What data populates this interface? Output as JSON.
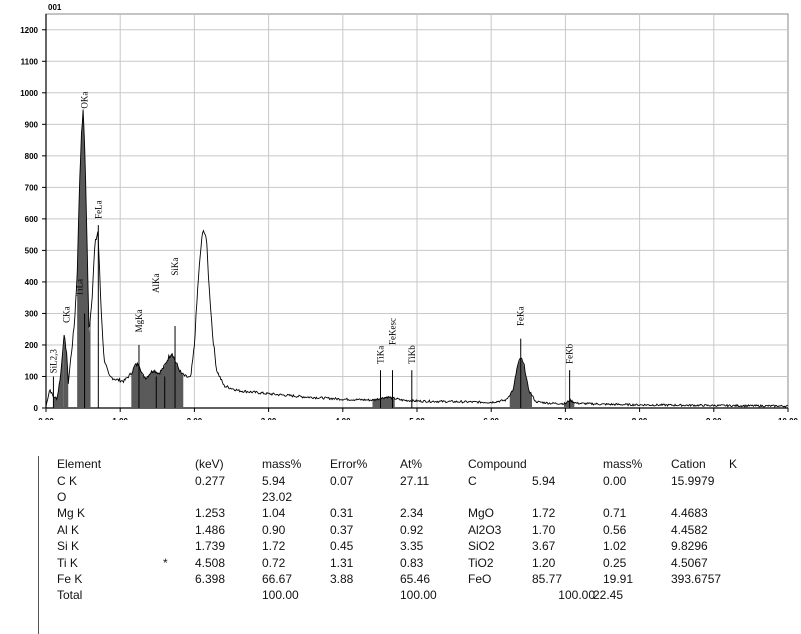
{
  "chart_data": {
    "type": "line",
    "title": "001",
    "xlabel": "",
    "ylabel": "",
    "xlim": [
      0,
      10
    ],
    "ylim": [
      0,
      1250
    ],
    "x_ticks": [
      "0.00",
      "1.00",
      "2.00",
      "3.00",
      "4.00",
      "5.00",
      "6.00",
      "7.00",
      "8.00",
      "9.00",
      "10.00"
    ],
    "y_ticks": [
      "0",
      "100",
      "200",
      "300",
      "400",
      "500",
      "600",
      "700",
      "800",
      "900",
      "1000",
      "1100",
      "1200"
    ],
    "grid": true,
    "fill_color": "#5a5a5a",
    "line_color": "#000000",
    "grid_color": "#c8c8c8",
    "series": [
      {
        "x": [
          0.0,
          0.05,
          0.1,
          0.15,
          0.2,
          0.24,
          0.277,
          0.3,
          0.34,
          0.38,
          0.42,
          0.45,
          0.48,
          0.5,
          0.52,
          0.55,
          0.58,
          0.62,
          0.66,
          0.7,
          0.74,
          0.78,
          0.85,
          0.95,
          1.05,
          1.15,
          1.2,
          1.253,
          1.3,
          1.35,
          1.4,
          1.45,
          1.486,
          1.52,
          1.56,
          1.6,
          1.65,
          1.7,
          1.739,
          1.78,
          1.82,
          1.88,
          1.95,
          2.0,
          2.05,
          2.1,
          2.13,
          2.16,
          2.2,
          2.25,
          2.3,
          2.4,
          2.6,
          3.0,
          3.5,
          4.0,
          4.4,
          4.5,
          4.6,
          4.7,
          4.8,
          5.0,
          5.5,
          6.0,
          6.2,
          6.3,
          6.35,
          6.398,
          6.45,
          6.5,
          6.6,
          6.8,
          7.0,
          7.06,
          7.15,
          7.5,
          8.0,
          9.0,
          10.0
        ],
        "y": [
          5,
          60,
          35,
          30,
          110,
          230,
          180,
          80,
          170,
          260,
          420,
          700,
          880,
          940,
          850,
          560,
          240,
          350,
          520,
          560,
          330,
          160,
          100,
          90,
          85,
          110,
          135,
          140,
          105,
          95,
          110,
          120,
          115,
          110,
          120,
          135,
          160,
          175,
          150,
          130,
          110,
          100,
          95,
          200,
          400,
          540,
          565,
          540,
          380,
          220,
          120,
          70,
          55,
          45,
          35,
          28,
          25,
          30,
          35,
          30,
          25,
          22,
          20,
          18,
          25,
          60,
          130,
          160,
          130,
          60,
          20,
          15,
          14,
          25,
          15,
          12,
          10,
          8,
          6
        ]
      }
    ],
    "peak_labels": [
      {
        "text": "SiL2,3",
        "x": 0.1,
        "y": 110
      },
      {
        "text": "CKa",
        "x": 0.277,
        "y": 270
      },
      {
        "text": "TiLa",
        "x": 0.45,
        "y": 355
      },
      {
        "text": "OKa",
        "x": 0.52,
        "y": 950
      },
      {
        "text": "FeLa",
        "x": 0.705,
        "y": 600
      },
      {
        "text": "MgKa",
        "x": 1.253,
        "y": 240
      },
      {
        "text": "AlKa",
        "x": 1.486,
        "y": 365
      },
      {
        "text": "SiKa",
        "x": 1.739,
        "y": 420
      },
      {
        "text": "TiKa",
        "x": 4.508,
        "y": 140
      },
      {
        "text": "FeKesc",
        "x": 4.67,
        "y": 200
      },
      {
        "text": "TiKb",
        "x": 4.93,
        "y": 140
      },
      {
        "text": "FeKa",
        "x": 6.398,
        "y": 260
      },
      {
        "text": "FeKb",
        "x": 7.057,
        "y": 140
      }
    ],
    "peak_markers": [
      {
        "x": 0.1,
        "y1": 0,
        "y2": 100
      },
      {
        "x": 0.52,
        "y1": 0,
        "y2": 300
      },
      {
        "x": 0.705,
        "y1": 0,
        "y2": 580
      },
      {
        "x": 1.253,
        "y1": 0,
        "y2": 200
      },
      {
        "x": 1.486,
        "y1": 0,
        "y2": 100
      },
      {
        "x": 1.6,
        "y1": 0,
        "y2": 100
      },
      {
        "x": 1.739,
        "y1": 0,
        "y2": 260
      },
      {
        "x": 4.508,
        "y1": 0,
        "y2": 120
      },
      {
        "x": 4.67,
        "y1": 0,
        "y2": 120
      },
      {
        "x": 4.93,
        "y1": 0,
        "y2": 120
      },
      {
        "x": 6.398,
        "y1": 0,
        "y2": 220
      },
      {
        "x": 7.057,
        "y1": 0,
        "y2": 120
      }
    ],
    "filled_bands": [
      [
        0.1,
        0.24
      ],
      [
        0.24,
        0.3
      ],
      [
        0.42,
        0.6
      ],
      [
        1.15,
        1.85
      ],
      [
        4.4,
        4.7
      ],
      [
        6.25,
        6.55
      ],
      [
        6.98,
        7.12
      ]
    ]
  },
  "results": {
    "header": [
      "Element",
      "",
      "(keV)",
      "mass%",
      "Error%",
      "At%",
      "Compound",
      "",
      "mass%",
      "Cation",
      "K"
    ],
    "rows": [
      [
        "C K",
        "",
        "0.277",
        "5.94",
        "0.07",
        "27.11",
        "C",
        "5.94",
        "0.00",
        "15.9979",
        ""
      ],
      [
        "O",
        "",
        "",
        "23.02",
        "",
        "",
        "",
        "",
        "",
        "",
        ""
      ],
      [
        "Mg K",
        "",
        "1.253",
        "1.04",
        "0.31",
        "2.34",
        "MgO",
        "1.72",
        "0.71",
        "4.4683",
        ""
      ],
      [
        "Al K",
        "",
        "1.486",
        "0.90",
        "0.37",
        "0.92",
        "Al2O3",
        "1.70",
        "0.56",
        "4.4582",
        ""
      ],
      [
        "Si K",
        "",
        "1.739",
        "1.72",
        "0.45",
        "3.35",
        "SiO2",
        "3.67",
        "1.02",
        "9.8296",
        ""
      ],
      [
        "Ti K",
        "*",
        "4.508",
        "0.72",
        "1.31",
        "0.83",
        "TiO2",
        "1.20",
        "0.25",
        "4.5067",
        ""
      ],
      [
        "Fe K",
        "",
        "6.398",
        "66.67",
        "3.88",
        "65.46",
        "FeO",
        "85.77",
        "19.91",
        "393.6757",
        ""
      ]
    ],
    "total": [
      "Total",
      "",
      "",
      "100.00",
      "",
      "100.00",
      "",
      "100.00",
      "22.45",
      "",
      ""
    ]
  }
}
